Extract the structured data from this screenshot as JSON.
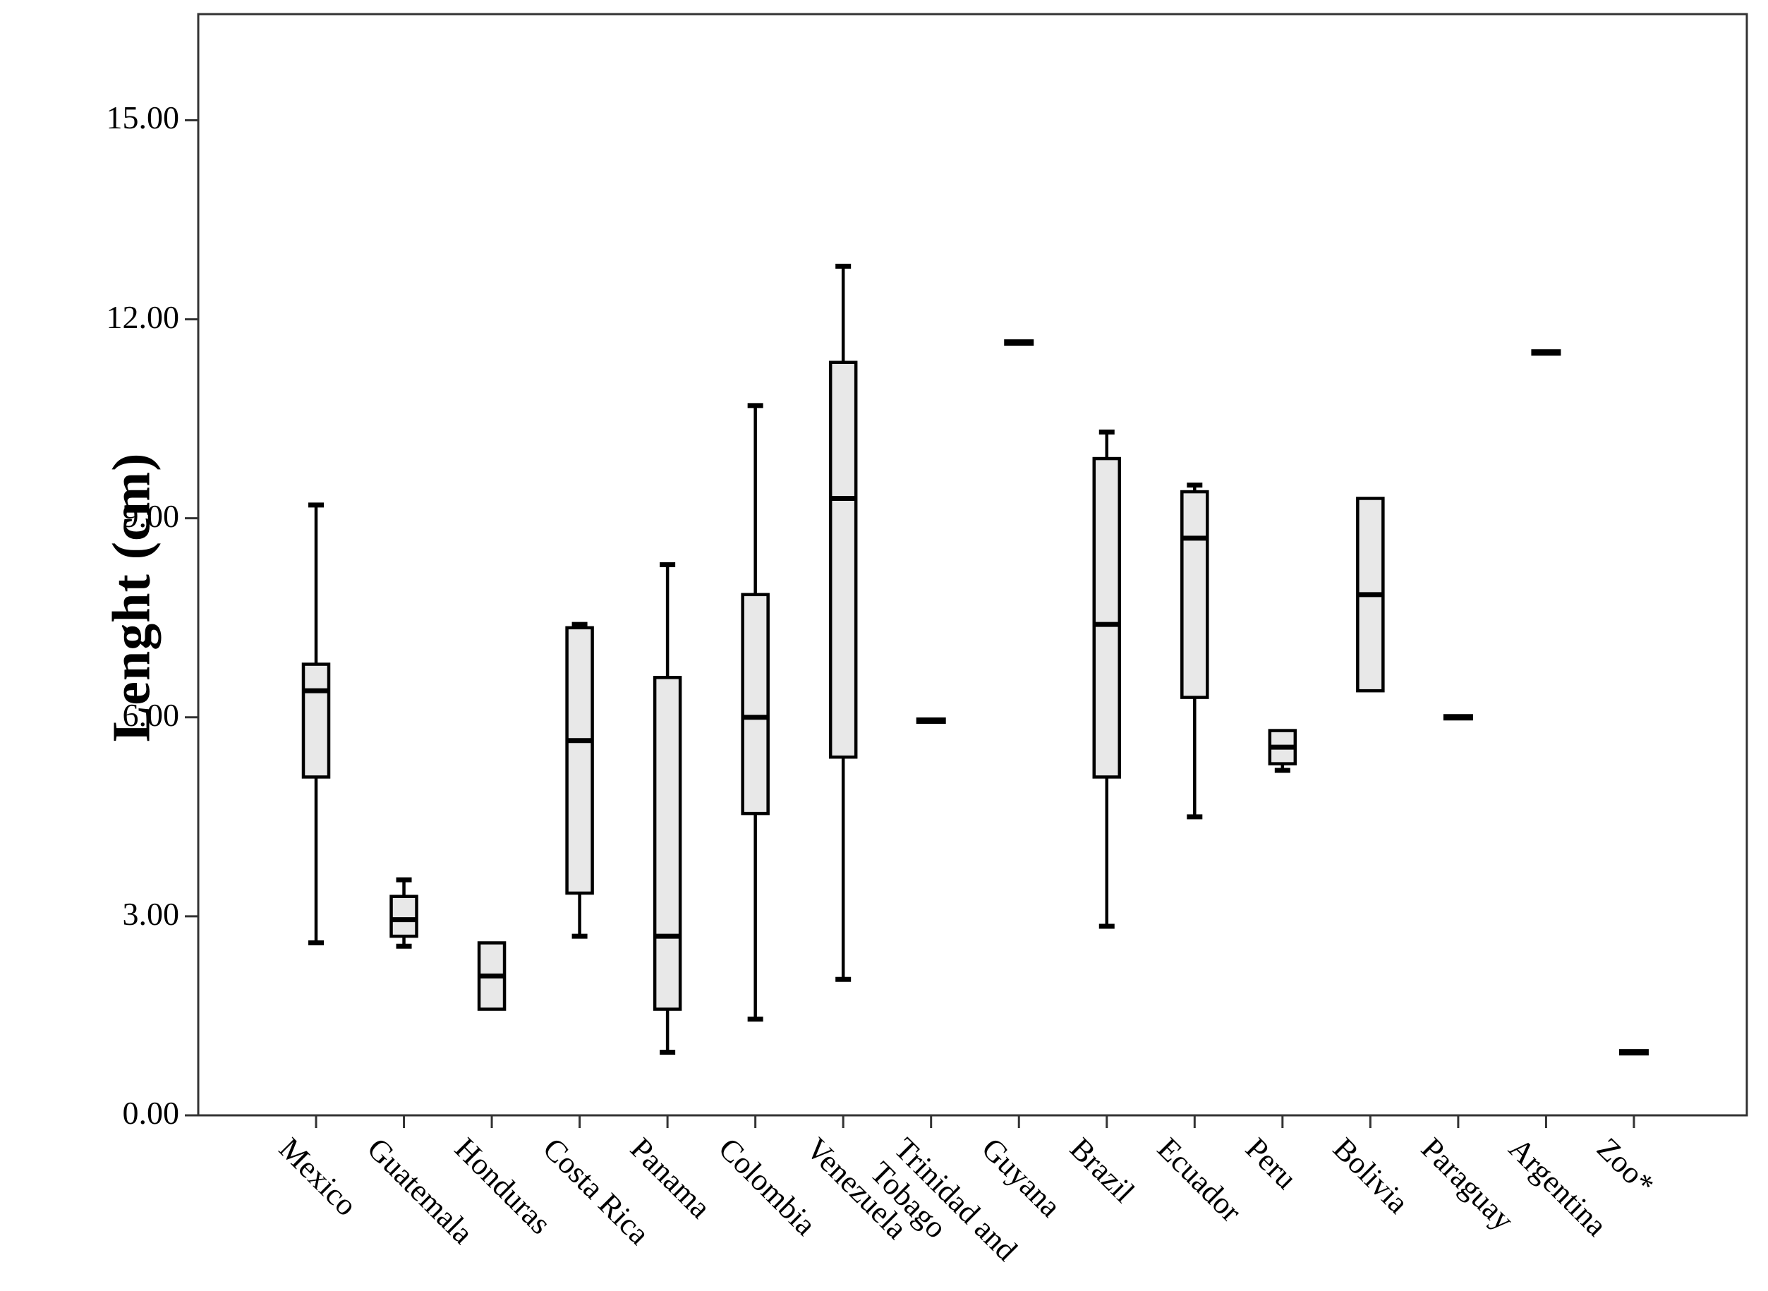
{
  "chart_data": {
    "type": "box",
    "title": "",
    "xlabel": "",
    "ylabel": "Lenght (cm)",
    "ylim": [
      0,
      16.6
    ],
    "grid": false,
    "legend": "none",
    "yticks": [
      {
        "value": 0,
        "label": "0.00"
      },
      {
        "value": 3,
        "label": "3.00"
      },
      {
        "value": 6,
        "label": "6.00"
      },
      {
        "value": 9,
        "label": "9.00"
      },
      {
        "value": 12,
        "label": "12.00"
      },
      {
        "value": 15,
        "label": "15.00"
      }
    ],
    "categories": [
      {
        "lines": [
          "Mexico"
        ]
      },
      {
        "lines": [
          "Guatemala"
        ]
      },
      {
        "lines": [
          "Honduras"
        ]
      },
      {
        "lines": [
          "Costa Rica"
        ]
      },
      {
        "lines": [
          "Panama"
        ]
      },
      {
        "lines": [
          "Colombia"
        ]
      },
      {
        "lines": [
          "Venezuela"
        ]
      },
      {
        "lines": [
          "Trinidad and",
          "Tobago"
        ]
      },
      {
        "lines": [
          "Guyana"
        ]
      },
      {
        "lines": [
          "Brazil"
        ]
      },
      {
        "lines": [
          "Ecuador"
        ]
      },
      {
        "lines": [
          "Peru"
        ]
      },
      {
        "lines": [
          "Bolivia"
        ]
      },
      {
        "lines": [
          "Paraguay"
        ]
      },
      {
        "lines": [
          "Argentina"
        ]
      },
      {
        "lines": [
          "Zoo*"
        ]
      }
    ],
    "series": [
      {
        "category": "Mexico",
        "kind": "box",
        "whisker_low": 2.6,
        "q1": 5.1,
        "median": 6.4,
        "q3": 6.8,
        "whisker_high": 9.2
      },
      {
        "category": "Guatemala",
        "kind": "box",
        "whisker_low": 2.55,
        "q1": 2.7,
        "median": 2.95,
        "q3": 3.3,
        "whisker_high": 3.55
      },
      {
        "category": "Honduras",
        "kind": "box",
        "whisker_low": 1.6,
        "q1": 1.6,
        "median": 2.1,
        "q3": 2.6,
        "whisker_high": 2.6
      },
      {
        "category": "Costa Rica",
        "kind": "box",
        "whisker_low": 2.7,
        "q1": 3.35,
        "median": 5.65,
        "q3": 7.35,
        "whisker_high": 7.4
      },
      {
        "category": "Panama",
        "kind": "box",
        "whisker_low": 0.95,
        "q1": 1.6,
        "median": 2.7,
        "q3": 6.6,
        "whisker_high": 8.3
      },
      {
        "category": "Colombia",
        "kind": "box",
        "whisker_low": 1.45,
        "q1": 4.55,
        "median": 6.0,
        "q3": 7.85,
        "whisker_high": 10.7
      },
      {
        "category": "Venezuela",
        "kind": "box",
        "whisker_low": 2.05,
        "q1": 5.4,
        "median": 9.3,
        "q3": 11.35,
        "whisker_high": 12.8
      },
      {
        "category": "Trinidad and Tobago",
        "kind": "single",
        "value": 5.95
      },
      {
        "category": "Guyana",
        "kind": "single",
        "value": 11.65
      },
      {
        "category": "Brazil",
        "kind": "box",
        "whisker_low": 2.85,
        "q1": 5.1,
        "median": 7.4,
        "q3": 9.9,
        "whisker_high": 10.3
      },
      {
        "category": "Ecuador",
        "kind": "box",
        "whisker_low": 4.5,
        "q1": 6.3,
        "median": 8.7,
        "q3": 9.4,
        "whisker_high": 9.5
      },
      {
        "category": "Peru",
        "kind": "box",
        "whisker_low": 5.2,
        "q1": 5.3,
        "median": 5.55,
        "q3": 5.8,
        "whisker_high": 5.8
      },
      {
        "category": "Bolivia",
        "kind": "box",
        "whisker_low": 6.4,
        "q1": 6.4,
        "median": 7.85,
        "q3": 9.3,
        "whisker_high": 9.3
      },
      {
        "category": "Paraguay",
        "kind": "single",
        "value": 6.0
      },
      {
        "category": "Argentina",
        "kind": "single",
        "value": 11.5
      },
      {
        "category": "Zoo*",
        "kind": "single",
        "value": 0.95
      }
    ],
    "colors": {
      "background": "#ffffff",
      "box_fill": "#e8e8e8",
      "line": "#000000",
      "axis": "#333333"
    }
  }
}
